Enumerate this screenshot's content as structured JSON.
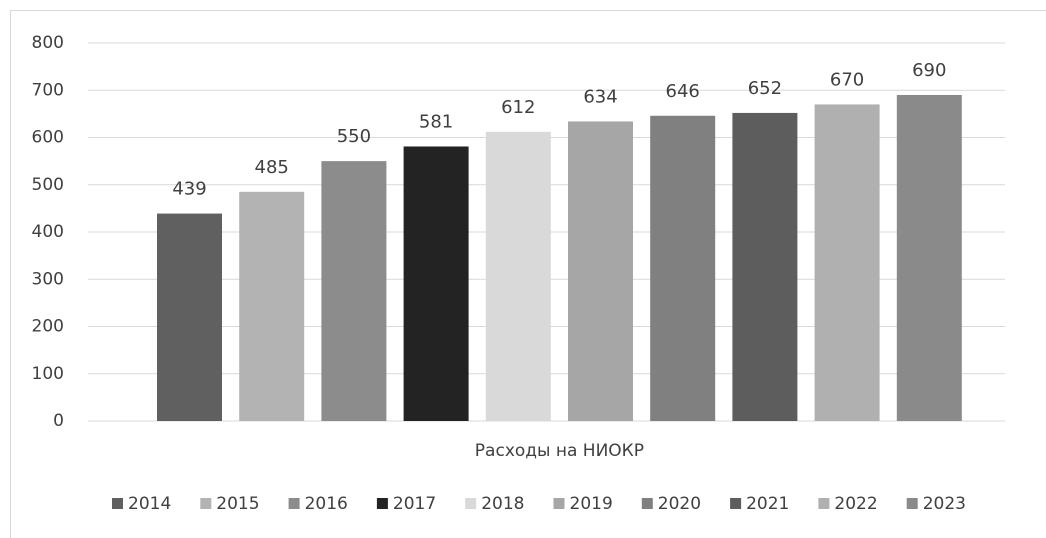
{
  "chart_data": {
    "type": "bar",
    "categories": [
      "Расходы на НИОКР"
    ],
    "series": [
      {
        "name": "2014",
        "color": "#606060",
        "values": [
          439
        ]
      },
      {
        "name": "2015",
        "color": "#b3b3b3",
        "values": [
          485
        ]
      },
      {
        "name": "2016",
        "color": "#8c8c8c",
        "values": [
          550
        ]
      },
      {
        "name": "2017",
        "color": "#232323",
        "values": [
          581
        ]
      },
      {
        "name": "2018",
        "color": "#d9d9d9",
        "values": [
          612
        ]
      },
      {
        "name": "2019",
        "color": "#a6a6a6",
        "values": [
          634
        ]
      },
      {
        "name": "2020",
        "color": "#808080",
        "values": [
          646
        ]
      },
      {
        "name": "2021",
        "color": "#5d5d5d",
        "values": [
          652
        ]
      },
      {
        "name": "2022",
        "color": "#b0b0b0",
        "values": [
          670
        ]
      },
      {
        "name": "2023",
        "color": "#8a8a8a",
        "values": [
          690
        ]
      }
    ],
    "ylim": [
      0,
      800
    ],
    "yticks": [
      0,
      100,
      200,
      300,
      400,
      500,
      600,
      700,
      800
    ],
    "grid": true,
    "legend": "bottom"
  }
}
